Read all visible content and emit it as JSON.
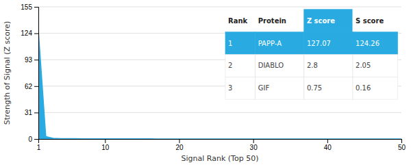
{
  "chart_data": {
    "type": "area",
    "xlabel": "Signal Rank (Top 50)",
    "ylabel": "Strength of Signal (Z score)",
    "x": [
      1,
      2,
      3,
      4,
      5,
      6,
      7,
      8,
      9,
      10,
      11,
      12,
      13,
      14,
      15,
      16,
      17,
      18,
      19,
      20,
      21,
      22,
      23,
      24,
      25,
      26,
      27,
      28,
      29,
      30,
      31,
      32,
      33,
      34,
      35,
      36,
      37,
      38,
      39,
      40,
      41,
      42,
      43,
      44,
      45,
      46,
      47,
      48,
      49,
      50
    ],
    "values": [
      127.07,
      2.8,
      0.75,
      0.5,
      0.42,
      0.35,
      0.3,
      0.26,
      0.23,
      0.2,
      0.18,
      0.16,
      0.14,
      0.13,
      0.12,
      0.11,
      0.1,
      0.09,
      0.08,
      0.07,
      0.07,
      0.06,
      0.06,
      0.05,
      0.05,
      0.04,
      0.04,
      0.03,
      0.03,
      0.03,
      0.02,
      0.02,
      0.02,
      0.02,
      0.01,
      0.01,
      0.01,
      0.01,
      0.01,
      0.01,
      0.01,
      0.01,
      0.01,
      0.01,
      0.01,
      0.01,
      0.01,
      0.01,
      0.01,
      0.01
    ],
    "color": "#29abe2",
    "xlim": [
      1,
      50
    ],
    "xticks": [
      1,
      10,
      20,
      30,
      40,
      50
    ],
    "ylim": [
      0,
      155
    ],
    "yticks": [
      0,
      31,
      62,
      93,
      124,
      155
    ],
    "grid": true,
    "table": {
      "columns": [
        "Rank",
        "Protein",
        "Z score",
        "S score"
      ],
      "rows": [
        [
          "1",
          "PAPP-A",
          "127.07",
          "124.26"
        ],
        [
          "2",
          "DIABLO",
          "2.8",
          "2.05"
        ],
        [
          "3",
          "GIF",
          "0.75",
          "0.16"
        ]
      ]
    }
  }
}
